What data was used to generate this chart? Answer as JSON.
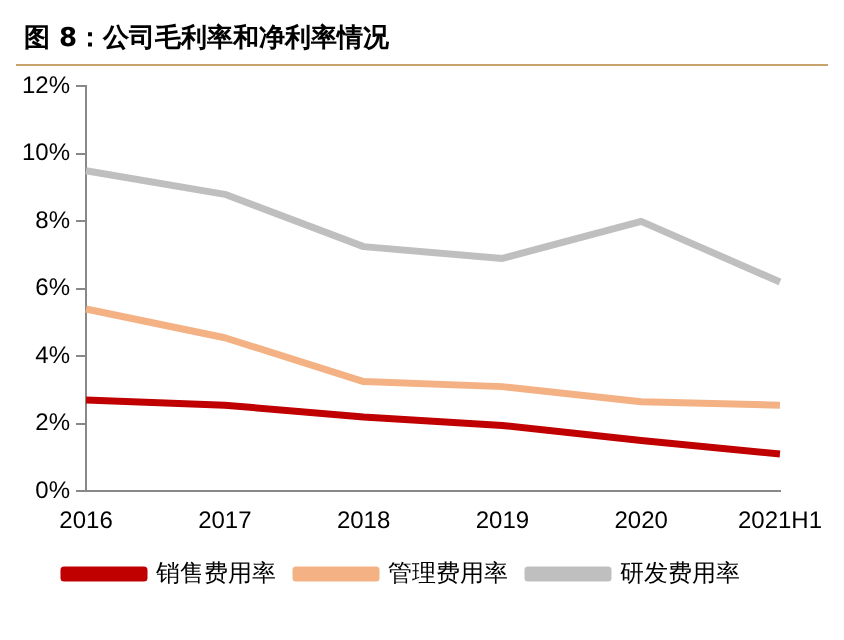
{
  "chart_data": {
    "type": "line",
    "title": "图 8：公司毛利率和净利率情况",
    "categories": [
      "2016",
      "2017",
      "2018",
      "2019",
      "2020",
      "2021H1"
    ],
    "series": [
      {
        "name": "销售费用率",
        "color": "#c00000",
        "values": [
          2.7,
          2.55,
          2.2,
          1.95,
          1.5,
          1.1
        ]
      },
      {
        "name": "管理费用率",
        "color": "#f4b183",
        "values": [
          5.4,
          4.55,
          3.25,
          3.1,
          2.65,
          2.55
        ]
      },
      {
        "name": "研发费用率",
        "color": "#bfbfbf",
        "values": [
          9.5,
          8.8,
          7.25,
          6.9,
          8.0,
          6.2
        ]
      }
    ],
    "ylim": [
      0,
      12
    ],
    "yticks": [
      {
        "value": 0,
        "label": "0%"
      },
      {
        "value": 2,
        "label": "2%"
      },
      {
        "value": 4,
        "label": "4%"
      },
      {
        "value": 6,
        "label": "6%"
      },
      {
        "value": 8,
        "label": "8%"
      },
      {
        "value": 10,
        "label": "10%"
      },
      {
        "value": 12,
        "label": "12%"
      }
    ],
    "grid": false,
    "legend": "bottom",
    "marker": "none",
    "line_style": "solid"
  }
}
